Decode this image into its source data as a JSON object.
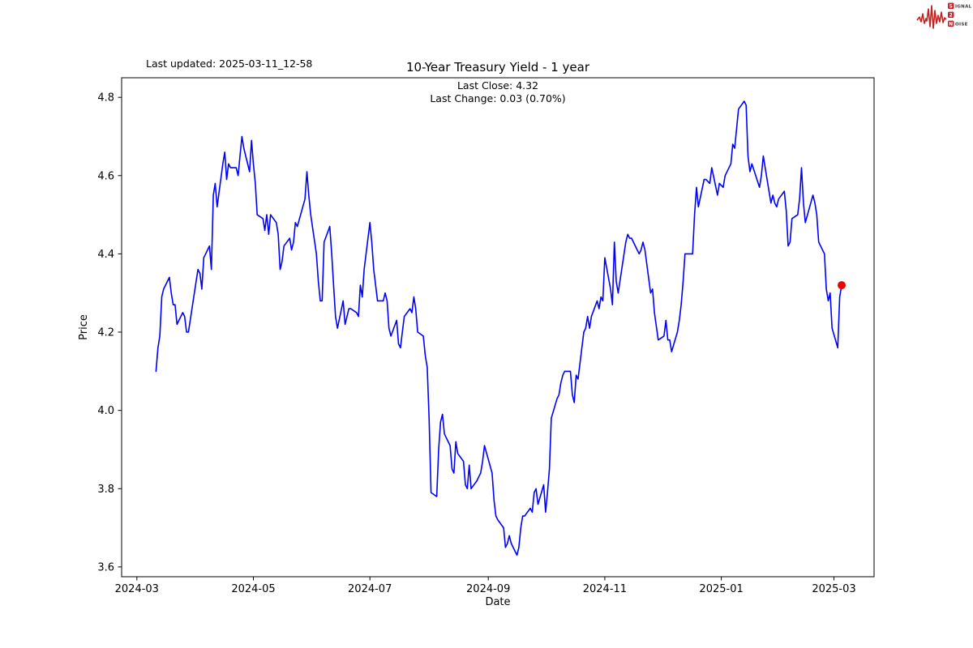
{
  "page": {
    "last_updated": "Last updated: 2025-03-11_12-58"
  },
  "logo": {
    "name": "Signal 2 Noise",
    "row1_box": "S",
    "row1_rest": "IGNAL",
    "row2_box": "2",
    "row3_box": "N",
    "row3_rest": "OISE",
    "wave_color": "#c32222",
    "box_color": "#c0262c"
  },
  "chart_data": {
    "type": "line",
    "title": "10-Year Treasury Yield - 1 year",
    "subtitle_lines": [
      "Last Close: 4.32",
      "Last Change: 0.03 (0.70%)"
    ],
    "xlabel": "Date",
    "ylabel": "Price",
    "last_close": 4.32,
    "last_change": 0.03,
    "last_change_pct": "0.70%",
    "line_color": "#0000ff",
    "marker_color": "#ee0000",
    "grid": false,
    "legend": "none",
    "ylim": [
      3.575,
      4.85
    ],
    "x_range": [
      "2024-02-22",
      "2025-03-22"
    ],
    "y_ticks": [
      {
        "v": 3.6,
        "label": "3.6"
      },
      {
        "v": 3.8,
        "label": "3.8"
      },
      {
        "v": 4.0,
        "label": "4.0"
      },
      {
        "v": 4.2,
        "label": "4.2"
      },
      {
        "v": 4.4,
        "label": "4.4"
      },
      {
        "v": 4.6,
        "label": "4.6"
      },
      {
        "v": 4.8,
        "label": "4.8"
      }
    ],
    "x_ticks": [
      {
        "date": "2024-03-01",
        "label": "2024-03"
      },
      {
        "date": "2024-05-01",
        "label": "2024-05"
      },
      {
        "date": "2024-07-01",
        "label": "2024-07"
      },
      {
        "date": "2024-09-01",
        "label": "2024-09"
      },
      {
        "date": "2024-11-01",
        "label": "2024-11"
      },
      {
        "date": "2025-01-01",
        "label": "2025-01"
      },
      {
        "date": "2025-03-01",
        "label": "2025-03"
      }
    ],
    "series": [
      {
        "name": "10-Year Treasury Yield",
        "points": [
          [
            "2024-03-11",
            4.1
          ],
          [
            "2024-03-12",
            4.16
          ],
          [
            "2024-03-13",
            4.19
          ],
          [
            "2024-03-14",
            4.29
          ],
          [
            "2024-03-15",
            4.31
          ],
          [
            "2024-03-18",
            4.34
          ],
          [
            "2024-03-19",
            4.3
          ],
          [
            "2024-03-20",
            4.27
          ],
          [
            "2024-03-21",
            4.27
          ],
          [
            "2024-03-22",
            4.22
          ],
          [
            "2024-03-25",
            4.25
          ],
          [
            "2024-03-26",
            4.24
          ],
          [
            "2024-03-27",
            4.2
          ],
          [
            "2024-03-28",
            4.2
          ],
          [
            "2024-04-01",
            4.33
          ],
          [
            "2024-04-02",
            4.36
          ],
          [
            "2024-04-03",
            4.35
          ],
          [
            "2024-04-04",
            4.31
          ],
          [
            "2024-04-05",
            4.39
          ],
          [
            "2024-04-08",
            4.42
          ],
          [
            "2024-04-09",
            4.36
          ],
          [
            "2024-04-10",
            4.55
          ],
          [
            "2024-04-11",
            4.58
          ],
          [
            "2024-04-12",
            4.52
          ],
          [
            "2024-04-15",
            4.63
          ],
          [
            "2024-04-16",
            4.66
          ],
          [
            "2024-04-17",
            4.59
          ],
          [
            "2024-04-18",
            4.63
          ],
          [
            "2024-04-19",
            4.62
          ],
          [
            "2024-04-22",
            4.62
          ],
          [
            "2024-04-23",
            4.6
          ],
          [
            "2024-04-24",
            4.65
          ],
          [
            "2024-04-25",
            4.7
          ],
          [
            "2024-04-26",
            4.67
          ],
          [
            "2024-04-29",
            4.61
          ],
          [
            "2024-04-30",
            4.69
          ],
          [
            "2024-05-01",
            4.63
          ],
          [
            "2024-05-02",
            4.58
          ],
          [
            "2024-05-03",
            4.5
          ],
          [
            "2024-05-06",
            4.49
          ],
          [
            "2024-05-07",
            4.46
          ],
          [
            "2024-05-08",
            4.5
          ],
          [
            "2024-05-09",
            4.45
          ],
          [
            "2024-05-10",
            4.5
          ],
          [
            "2024-05-13",
            4.48
          ],
          [
            "2024-05-14",
            4.45
          ],
          [
            "2024-05-15",
            4.36
          ],
          [
            "2024-05-16",
            4.38
          ],
          [
            "2024-05-17",
            4.42
          ],
          [
            "2024-05-20",
            4.44
          ],
          [
            "2024-05-21",
            4.41
          ],
          [
            "2024-05-22",
            4.43
          ],
          [
            "2024-05-23",
            4.48
          ],
          [
            "2024-05-24",
            4.47
          ],
          [
            "2024-05-28",
            4.54
          ],
          [
            "2024-05-29",
            4.61
          ],
          [
            "2024-05-30",
            4.55
          ],
          [
            "2024-05-31",
            4.5
          ],
          [
            "2024-06-03",
            4.4
          ],
          [
            "2024-06-04",
            4.33
          ],
          [
            "2024-06-05",
            4.28
          ],
          [
            "2024-06-06",
            4.28
          ],
          [
            "2024-06-07",
            4.43
          ],
          [
            "2024-06-10",
            4.47
          ],
          [
            "2024-06-11",
            4.4
          ],
          [
            "2024-06-12",
            4.32
          ],
          [
            "2024-06-13",
            4.24
          ],
          [
            "2024-06-14",
            4.21
          ],
          [
            "2024-06-17",
            4.28
          ],
          [
            "2024-06-18",
            4.22
          ],
          [
            "2024-06-20",
            4.26
          ],
          [
            "2024-06-21",
            4.26
          ],
          [
            "2024-06-24",
            4.25
          ],
          [
            "2024-06-25",
            4.24
          ],
          [
            "2024-06-26",
            4.32
          ],
          [
            "2024-06-27",
            4.29
          ],
          [
            "2024-06-28",
            4.36
          ],
          [
            "2024-07-01",
            4.48
          ],
          [
            "2024-07-02",
            4.43
          ],
          [
            "2024-07-03",
            4.36
          ],
          [
            "2024-07-05",
            4.28
          ],
          [
            "2024-07-08",
            4.28
          ],
          [
            "2024-07-09",
            4.3
          ],
          [
            "2024-07-10",
            4.28
          ],
          [
            "2024-07-11",
            4.21
          ],
          [
            "2024-07-12",
            4.19
          ],
          [
            "2024-07-15",
            4.23
          ],
          [
            "2024-07-16",
            4.17
          ],
          [
            "2024-07-17",
            4.16
          ],
          [
            "2024-07-18",
            4.2
          ],
          [
            "2024-07-19",
            4.24
          ],
          [
            "2024-07-22",
            4.26
          ],
          [
            "2024-07-23",
            4.25
          ],
          [
            "2024-07-24",
            4.29
          ],
          [
            "2024-07-25",
            4.26
          ],
          [
            "2024-07-26",
            4.2
          ],
          [
            "2024-07-29",
            4.19
          ],
          [
            "2024-07-30",
            4.14
          ],
          [
            "2024-07-31",
            4.11
          ],
          [
            "2024-08-01",
            3.98
          ],
          [
            "2024-08-02",
            3.79
          ],
          [
            "2024-08-05",
            3.78
          ],
          [
            "2024-08-06",
            3.9
          ],
          [
            "2024-08-07",
            3.97
          ],
          [
            "2024-08-08",
            3.99
          ],
          [
            "2024-08-09",
            3.94
          ],
          [
            "2024-08-12",
            3.91
          ],
          [
            "2024-08-13",
            3.85
          ],
          [
            "2024-08-14",
            3.84
          ],
          [
            "2024-08-15",
            3.92
          ],
          [
            "2024-08-16",
            3.89
          ],
          [
            "2024-08-19",
            3.87
          ],
          [
            "2024-08-20",
            3.81
          ],
          [
            "2024-08-21",
            3.8
          ],
          [
            "2024-08-22",
            3.86
          ],
          [
            "2024-08-23",
            3.8
          ],
          [
            "2024-08-26",
            3.82
          ],
          [
            "2024-08-27",
            3.83
          ],
          [
            "2024-08-28",
            3.84
          ],
          [
            "2024-08-29",
            3.87
          ],
          [
            "2024-08-30",
            3.91
          ],
          [
            "2024-09-03",
            3.84
          ],
          [
            "2024-09-04",
            3.77
          ],
          [
            "2024-09-05",
            3.73
          ],
          [
            "2024-09-06",
            3.72
          ],
          [
            "2024-09-09",
            3.7
          ],
          [
            "2024-09-10",
            3.65
          ],
          [
            "2024-09-11",
            3.66
          ],
          [
            "2024-09-12",
            3.68
          ],
          [
            "2024-09-13",
            3.66
          ],
          [
            "2024-09-16",
            3.63
          ],
          [
            "2024-09-17",
            3.65
          ],
          [
            "2024-09-18",
            3.7
          ],
          [
            "2024-09-19",
            3.73
          ],
          [
            "2024-09-20",
            3.73
          ],
          [
            "2024-09-23",
            3.75
          ],
          [
            "2024-09-24",
            3.74
          ],
          [
            "2024-09-25",
            3.79
          ],
          [
            "2024-09-26",
            3.8
          ],
          [
            "2024-09-27",
            3.76
          ],
          [
            "2024-09-30",
            3.81
          ],
          [
            "2024-10-01",
            3.74
          ],
          [
            "2024-10-02",
            3.79
          ],
          [
            "2024-10-03",
            3.85
          ],
          [
            "2024-10-04",
            3.98
          ],
          [
            "2024-10-07",
            4.03
          ],
          [
            "2024-10-08",
            4.04
          ],
          [
            "2024-10-09",
            4.07
          ],
          [
            "2024-10-10",
            4.09
          ],
          [
            "2024-10-11",
            4.1
          ],
          [
            "2024-10-14",
            4.1
          ],
          [
            "2024-10-15",
            4.04
          ],
          [
            "2024-10-16",
            4.02
          ],
          [
            "2024-10-17",
            4.09
          ],
          [
            "2024-10-18",
            4.08
          ],
          [
            "2024-10-21",
            4.2
          ],
          [
            "2024-10-22",
            4.21
          ],
          [
            "2024-10-23",
            4.24
          ],
          [
            "2024-10-24",
            4.21
          ],
          [
            "2024-10-25",
            4.24
          ],
          [
            "2024-10-28",
            4.28
          ],
          [
            "2024-10-29",
            4.26
          ],
          [
            "2024-10-30",
            4.29
          ],
          [
            "2024-10-31",
            4.28
          ],
          [
            "2024-11-01",
            4.39
          ],
          [
            "2024-11-04",
            4.31
          ],
          [
            "2024-11-05",
            4.27
          ],
          [
            "2024-11-06",
            4.43
          ],
          [
            "2024-11-07",
            4.33
          ],
          [
            "2024-11-08",
            4.3
          ],
          [
            "2024-11-12",
            4.43
          ],
          [
            "2024-11-13",
            4.45
          ],
          [
            "2024-11-14",
            4.44
          ],
          [
            "2024-11-15",
            4.44
          ],
          [
            "2024-11-18",
            4.41
          ],
          [
            "2024-11-19",
            4.4
          ],
          [
            "2024-11-20",
            4.41
          ],
          [
            "2024-11-21",
            4.43
          ],
          [
            "2024-11-22",
            4.41
          ],
          [
            "2024-11-25",
            4.3
          ],
          [
            "2024-11-26",
            4.31
          ],
          [
            "2024-11-27",
            4.25
          ],
          [
            "2024-11-29",
            4.18
          ],
          [
            "2024-12-02",
            4.19
          ],
          [
            "2024-12-03",
            4.23
          ],
          [
            "2024-12-04",
            4.18
          ],
          [
            "2024-12-05",
            4.18
          ],
          [
            "2024-12-06",
            4.15
          ],
          [
            "2024-12-09",
            4.2
          ],
          [
            "2024-12-10",
            4.23
          ],
          [
            "2024-12-11",
            4.27
          ],
          [
            "2024-12-12",
            4.33
          ],
          [
            "2024-12-13",
            4.4
          ],
          [
            "2024-12-16",
            4.4
          ],
          [
            "2024-12-17",
            4.4
          ],
          [
            "2024-12-18",
            4.5
          ],
          [
            "2024-12-19",
            4.57
          ],
          [
            "2024-12-20",
            4.52
          ],
          [
            "2024-12-23",
            4.59
          ],
          [
            "2024-12-24",
            4.59
          ],
          [
            "2024-12-26",
            4.58
          ],
          [
            "2024-12-27",
            4.62
          ],
          [
            "2024-12-30",
            4.55
          ],
          [
            "2024-12-31",
            4.58
          ],
          [
            "2025-01-02",
            4.57
          ],
          [
            "2025-01-03",
            4.6
          ],
          [
            "2025-01-06",
            4.63
          ],
          [
            "2025-01-07",
            4.68
          ],
          [
            "2025-01-08",
            4.67
          ],
          [
            "2025-01-10",
            4.77
          ],
          [
            "2025-01-13",
            4.79
          ],
          [
            "2025-01-14",
            4.78
          ],
          [
            "2025-01-15",
            4.65
          ],
          [
            "2025-01-16",
            4.61
          ],
          [
            "2025-01-17",
            4.63
          ],
          [
            "2025-01-21",
            4.57
          ],
          [
            "2025-01-22",
            4.6
          ],
          [
            "2025-01-23",
            4.65
          ],
          [
            "2025-01-24",
            4.62
          ],
          [
            "2025-01-27",
            4.53
          ],
          [
            "2025-01-28",
            4.55
          ],
          [
            "2025-01-29",
            4.53
          ],
          [
            "2025-01-30",
            4.52
          ],
          [
            "2025-01-31",
            4.54
          ],
          [
            "2025-02-03",
            4.56
          ],
          [
            "2025-02-04",
            4.51
          ],
          [
            "2025-02-05",
            4.42
          ],
          [
            "2025-02-06",
            4.43
          ],
          [
            "2025-02-07",
            4.49
          ],
          [
            "2025-02-10",
            4.5
          ],
          [
            "2025-02-11",
            4.54
          ],
          [
            "2025-02-12",
            4.62
          ],
          [
            "2025-02-13",
            4.53
          ],
          [
            "2025-02-14",
            4.48
          ],
          [
            "2025-02-18",
            4.55
          ],
          [
            "2025-02-19",
            4.53
          ],
          [
            "2025-02-20",
            4.5
          ],
          [
            "2025-02-21",
            4.43
          ],
          [
            "2025-02-24",
            4.4
          ],
          [
            "2025-02-25",
            4.31
          ],
          [
            "2025-02-26",
            4.28
          ],
          [
            "2025-02-27",
            4.3
          ],
          [
            "2025-02-28",
            4.21
          ],
          [
            "2025-03-03",
            4.16
          ],
          [
            "2025-03-04",
            4.29
          ],
          [
            "2025-03-05",
            4.32
          ]
        ]
      }
    ]
  }
}
